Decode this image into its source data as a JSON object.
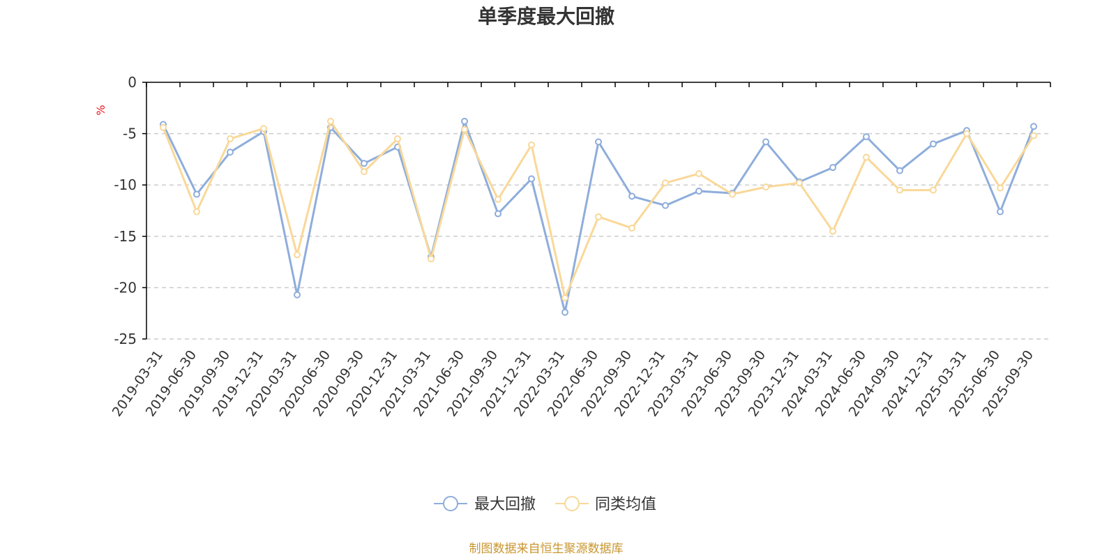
{
  "chart_data": {
    "type": "line",
    "title": "单季度最大回撤",
    "ylabel": "%",
    "ylim": [
      -25,
      0
    ],
    "yticks": [
      0,
      -5,
      -10,
      -15,
      -20,
      -25
    ],
    "grid": true,
    "legend_position": "bottom",
    "x": [
      "2019-03-31",
      "2019-06-30",
      "2019-09-30",
      "2019-12-31",
      "2020-03-31",
      "2020-06-30",
      "2020-09-30",
      "2020-12-31",
      "2021-03-31",
      "2021-06-30",
      "2021-09-30",
      "2021-12-31",
      "2022-03-31",
      "2022-06-30",
      "2022-09-30",
      "2022-12-31",
      "2023-03-31",
      "2023-06-30",
      "2023-09-30",
      "2023-12-31",
      "2024-03-31",
      "2024-06-30",
      "2024-09-30",
      "2024-12-31",
      "2025-03-31",
      "2025-06-30",
      "2025-09-30"
    ],
    "series": [
      {
        "name": "最大回撤",
        "color": "#8eaddb",
        "values": [
          -4.1,
          -10.9,
          -6.8,
          -4.8,
          -20.7,
          -4.4,
          -7.9,
          -6.3,
          -17.0,
          -3.8,
          -12.8,
          -9.4,
          -22.4,
          -5.8,
          -11.1,
          -12.0,
          -10.6,
          -10.8,
          -5.8,
          -9.7,
          -8.3,
          -5.3,
          -8.6,
          -6.0,
          -4.7,
          -12.6,
          -4.3
        ]
      },
      {
        "name": "同类均值",
        "color": "#f9d899",
        "values": [
          -4.4,
          -12.6,
          -5.5,
          -4.5,
          -16.8,
          -3.8,
          -8.7,
          -5.5,
          -17.2,
          -4.6,
          -11.4,
          -6.1,
          -21.0,
          -13.1,
          -14.2,
          -9.8,
          -8.9,
          -10.9,
          -10.2,
          -9.8,
          -14.5,
          -7.3,
          -10.5,
          -10.5,
          -5.0,
          -10.3,
          -5.2
        ]
      }
    ]
  },
  "source_text": "制图数据来自恒生聚源数据库",
  "colors": {
    "unit": "#e8151e",
    "source": "#c9962f",
    "axis": "#000000",
    "grid": "#cccccc"
  }
}
